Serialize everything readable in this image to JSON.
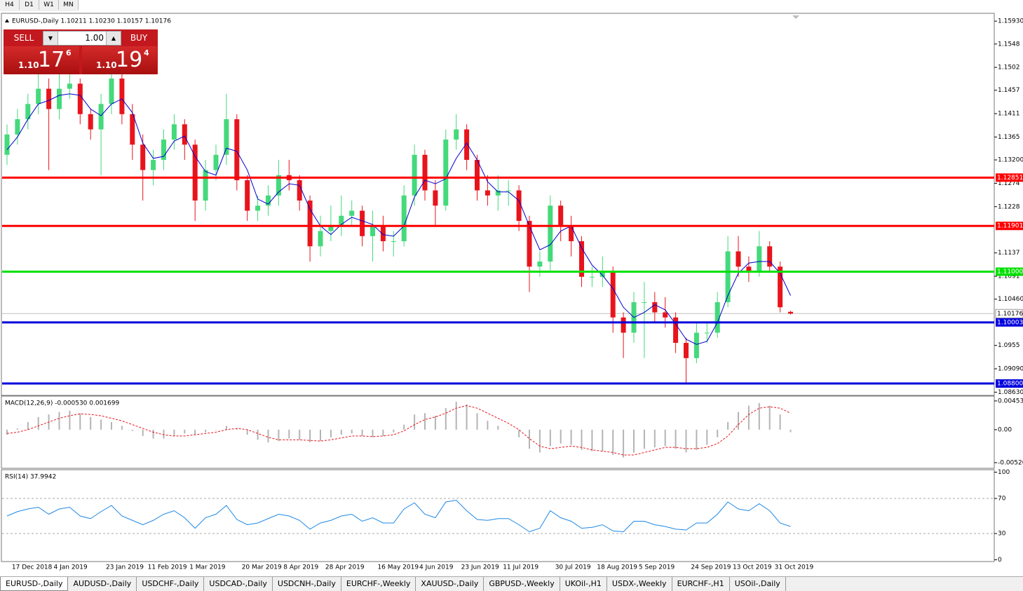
{
  "toolbar": {
    "timeframes": [
      "H4",
      "D1",
      "W1",
      "MN"
    ]
  },
  "trade_panel": {
    "sell": "SELL",
    "lot": "1.00",
    "buy": "BUY",
    "sell_big": "1.10",
    "sell_pips": "17",
    "sell_frac": "6",
    "buy_big": "1.10",
    "buy_pips": "19",
    "buy_frac": "4"
  },
  "chart_data": [
    {
      "type": "candlestick",
      "title": "EURUSD-,Daily  1.10211 1.10230 1.10157 1.10176",
      "categories": [
        null,
        "17 Dec 2018",
        null,
        null,
        null,
        "4 Jan 2019",
        null,
        null,
        null,
        null,
        "23 Jan 2019",
        null,
        null,
        null,
        "11 Feb 2019",
        null,
        null,
        null,
        "1 Mar 2019",
        null,
        null,
        null,
        null,
        "20 Mar 2019",
        null,
        null,
        null,
        "8 Apr 2019",
        null,
        null,
        null,
        "28 Apr 2019",
        null,
        null,
        null,
        null,
        "16 May 2019",
        null,
        null,
        null,
        "4 Jun 2019",
        null,
        null,
        null,
        "23 Jun 2019",
        null,
        null,
        null,
        "11 Jul 2019",
        null,
        null,
        null,
        null,
        "30 Jul 2019",
        null,
        null,
        null,
        "18 Aug 2019",
        null,
        null,
        null,
        "5 Sep 2019",
        null,
        null,
        null,
        null,
        "24 Sep 2019",
        null,
        null,
        null,
        "13 Oct 2019",
        null,
        null,
        null,
        "31 Oct 2019",
        null
      ],
      "open": [
        1.133,
        1.137,
        1.14,
        1.143,
        1.146,
        1.142,
        1.146,
        1.147,
        1.141,
        1.138,
        1.143,
        1.148,
        1.141,
        1.135,
        1.13,
        1.132,
        1.136,
        1.139,
        1.135,
        1.124,
        1.13,
        1.133,
        1.14,
        1.128,
        1.122,
        1.123,
        1.125,
        1.129,
        1.128,
        1.124,
        1.115,
        1.118,
        1.119,
        1.121,
        1.122,
        1.117,
        1.119,
        1.116,
        1.116,
        1.125,
        1.133,
        1.126,
        1.123,
        1.136,
        1.138,
        1.132,
        1.126,
        1.125,
        1.126,
        1.126,
        1.12,
        1.111,
        1.112,
        1.123,
        1.119,
        1.116,
        1.109,
        1.109,
        1.11,
        1.101,
        1.098,
        1.104,
        1.104,
        1.102,
        1.101,
        1.096,
        1.093,
        1.098,
        1.098,
        1.104,
        1.114,
        1.111,
        1.11,
        1.115,
        1.111,
        1.10211
      ],
      "high": [
        1.139,
        1.142,
        1.145,
        1.149,
        1.148,
        1.149,
        1.149,
        1.148,
        1.142,
        1.145,
        1.149,
        1.149,
        1.143,
        1.137,
        1.134,
        1.138,
        1.141,
        1.14,
        1.136,
        1.132,
        1.135,
        1.145,
        1.141,
        1.129,
        1.125,
        1.127,
        1.132,
        1.132,
        1.129,
        1.125,
        1.121,
        1.123,
        1.125,
        1.124,
        1.123,
        1.122,
        1.121,
        1.118,
        1.127,
        1.135,
        1.134,
        1.128,
        1.138,
        1.141,
        1.139,
        1.133,
        1.129,
        1.129,
        1.128,
        1.127,
        1.121,
        1.114,
        1.125,
        1.124,
        1.121,
        1.117,
        1.111,
        1.113,
        1.111,
        1.102,
        1.106,
        1.108,
        1.106,
        1.105,
        1.102,
        1.097,
        1.1,
        1.1,
        1.106,
        1.117,
        1.117,
        1.113,
        1.118,
        1.116,
        1.112,
        1.1023
      ],
      "low": [
        1.131,
        1.135,
        1.138,
        1.141,
        1.13,
        1.14,
        1.144,
        1.139,
        1.136,
        1.129,
        1.141,
        1.139,
        1.132,
        1.124,
        1.127,
        1.13,
        1.134,
        1.132,
        1.12,
        1.122,
        1.128,
        1.131,
        1.126,
        1.12,
        1.12,
        1.121,
        1.123,
        1.126,
        1.122,
        1.112,
        1.113,
        1.116,
        1.117,
        1.119,
        1.115,
        1.112,
        1.114,
        1.113,
        1.115,
        1.123,
        1.124,
        1.119,
        1.122,
        1.134,
        1.13,
        1.124,
        1.123,
        1.122,
        1.123,
        1.118,
        1.106,
        1.109,
        1.11,
        1.116,
        1.113,
        1.107,
        1.107,
        1.107,
        1.098,
        1.093,
        1.096,
        1.093,
        1.1,
        1.099,
        1.094,
        1.088,
        1.092,
        1.096,
        1.097,
        1.103,
        1.109,
        1.108,
        1.109,
        1.11,
        1.102,
        1.10157
      ],
      "close": [
        1.137,
        1.14,
        1.143,
        1.146,
        1.142,
        1.146,
        1.147,
        1.141,
        1.138,
        1.143,
        1.148,
        1.141,
        1.135,
        1.13,
        1.132,
        1.136,
        1.139,
        1.135,
        1.124,
        1.13,
        1.133,
        1.14,
        1.128,
        1.122,
        1.123,
        1.125,
        1.129,
        1.128,
        1.124,
        1.115,
        1.118,
        1.119,
        1.121,
        1.122,
        1.117,
        1.119,
        1.116,
        1.116,
        1.125,
        1.133,
        1.126,
        1.123,
        1.136,
        1.138,
        1.132,
        1.126,
        1.125,
        1.126,
        1.126,
        1.12,
        1.111,
        1.112,
        1.123,
        1.119,
        1.116,
        1.109,
        1.109,
        1.11,
        1.101,
        1.098,
        1.104,
        1.104,
        1.102,
        1.101,
        1.096,
        1.093,
        1.098,
        1.098,
        1.104,
        1.114,
        1.111,
        1.11,
        1.115,
        1.111,
        1.103,
        1.10176
      ],
      "up_color": "#44d97b",
      "down_color": "#e8141c",
      "moving_average": {
        "color": "#0000cc",
        "values": [
          1.134,
          1.1365,
          1.14,
          1.143,
          1.1437,
          1.1447,
          1.145,
          1.1447,
          1.142,
          1.1407,
          1.143,
          1.144,
          1.1413,
          1.1353,
          1.1323,
          1.1327,
          1.1357,
          1.1367,
          1.1327,
          1.1297,
          1.129,
          1.1343,
          1.1337,
          1.13,
          1.1243,
          1.1233,
          1.1257,
          1.1273,
          1.127,
          1.1223,
          1.119,
          1.1173,
          1.1193,
          1.1207,
          1.12,
          1.1193,
          1.1173,
          1.117,
          1.119,
          1.1247,
          1.128,
          1.1273,
          1.1283,
          1.1323,
          1.1353,
          1.132,
          1.1277,
          1.1257,
          1.1257,
          1.124,
          1.119,
          1.1143,
          1.1153,
          1.118,
          1.119,
          1.1147,
          1.1113,
          1.1093,
          1.1067,
          1.103,
          1.101,
          1.102,
          1.1035,
          1.1025,
          1.0997,
          1.0967,
          1.0957,
          1.0963,
          1.1,
          1.1053,
          1.1097,
          1.1117,
          1.112,
          1.112,
          1.1097,
          1.1053
        ]
      },
      "levels": [
        {
          "value": 1.12851,
          "color": "#ff0000"
        },
        {
          "value": 1.11901,
          "color": "#ff0000"
        },
        {
          "value": 1.11,
          "label": "1.11000",
          "color": "#00e000"
        },
        {
          "value": 1.10003,
          "color": "#0000dd"
        },
        {
          "value": 1.088,
          "label": "1.08800",
          "color": "#0000dd"
        }
      ],
      "current_price": 1.10176,
      "ylim": [
        1.0858,
        1.1607
      ],
      "yticks": [
        {
          "value": 1.1593,
          "label": "1.15930"
        },
        1.1548,
        1.1502,
        1.1457,
        1.1411,
        1.1365,
        {
          "value": 1.132,
          "label": "1.13200"
        },
        1.1274,
        1.1228,
        1.1137,
        1.1091,
        {
          "value": 1.1046,
          "label": "1.10460"
        },
        1.0955,
        {
          "value": 1.0909,
          "label": "1.09090"
        },
        {
          "value": 1.0863,
          "label": "1.08630"
        }
      ]
    },
    {
      "type": "macd",
      "title": "MACD(12,26,9) -0.000530 0.001699",
      "histogram": [
        -0.0008,
        0.0002,
        0.0012,
        0.002,
        0.0024,
        0.0028,
        0.003,
        0.0026,
        0.002,
        0.0016,
        0.0012,
        0.0006,
        -0.0002,
        -0.001,
        -0.0014,
        -0.0014,
        -0.001,
        -0.0006,
        -0.0008,
        -0.0004,
        0.0,
        0.0006,
        0.0002,
        -0.0008,
        -0.0016,
        -0.002,
        -0.0018,
        -0.0014,
        -0.0016,
        -0.002,
        -0.0018,
        -0.0012,
        -0.0008,
        -0.0006,
        -0.001,
        -0.0012,
        -0.001,
        -0.0004,
        0.0008,
        0.0024,
        0.0026,
        0.0022,
        0.0034,
        0.0044,
        0.004,
        0.0026,
        0.0014,
        0.0006,
        0.0,
        -0.0012,
        -0.003,
        -0.0036,
        -0.0026,
        -0.0022,
        -0.0024,
        -0.0032,
        -0.0034,
        -0.0034,
        -0.004,
        -0.0044,
        -0.0036,
        -0.003,
        -0.0028,
        -0.0026,
        -0.003,
        -0.0036,
        -0.0032,
        -0.0024,
        -0.0012,
        0.0012,
        0.0028,
        0.0038,
        0.0042,
        0.0038,
        0.0024,
        -0.0004
      ],
      "signal": [
        -0.0006,
        -0.0004,
        0.0,
        0.0006,
        0.0012,
        0.0018,
        0.0022,
        0.0025,
        0.0024,
        0.0022,
        0.0018,
        0.0014,
        0.0008,
        0.0002,
        -0.0004,
        -0.0008,
        -0.001,
        -0.001,
        -0.0008,
        -0.0006,
        -0.0004,
        0.0,
        0.0002,
        0.0,
        -0.0006,
        -0.0012,
        -0.0016,
        -0.0016,
        -0.0016,
        -0.0017,
        -0.0018,
        -0.0016,
        -0.0013,
        -0.001,
        -0.001,
        -0.0011,
        -0.001,
        -0.0008,
        -0.0002,
        0.0008,
        0.0016,
        0.002,
        0.0026,
        0.0034,
        0.0038,
        0.0034,
        0.0026,
        0.0018,
        0.001,
        0.0,
        -0.0014,
        -0.0026,
        -0.003,
        -0.0028,
        -0.0026,
        -0.0028,
        -0.0032,
        -0.0034,
        -0.0036,
        -0.004,
        -0.004,
        -0.0036,
        -0.0032,
        -0.0028,
        -0.0028,
        -0.003,
        -0.003,
        -0.0028,
        -0.0022,
        -0.001,
        0.0008,
        0.0024,
        0.0034,
        0.0036,
        0.0034,
        0.0026
      ],
      "histogram_color": "#b4b4b4",
      "signal_color": "#e8141c",
      "ylim": [
        -0.0061,
        0.0053
      ],
      "yticks": [
        0.004536,
        {
          "value": 0,
          "label": "0.00"
        },
        -0.005208
      ]
    },
    {
      "type": "rsi",
      "title": "RSI(14) 37.9942",
      "values": [
        50,
        55,
        58,
        60,
        52,
        58,
        60,
        50,
        47,
        55,
        62,
        50,
        45,
        40,
        45,
        52,
        56,
        48,
        36,
        48,
        52,
        62,
        46,
        40,
        42,
        47,
        52,
        50,
        45,
        35,
        42,
        45,
        50,
        52,
        44,
        48,
        42,
        42,
        58,
        65,
        52,
        48,
        66,
        68,
        56,
        46,
        45,
        47,
        47,
        40,
        32,
        36,
        56,
        48,
        44,
        36,
        37,
        40,
        33,
        32,
        44,
        44,
        40,
        38,
        35,
        34,
        42,
        42,
        52,
        66,
        58,
        56,
        64,
        56,
        42,
        38
      ],
      "color": "#1e88e5",
      "levels": [
        70,
        30
      ],
      "ylim": [
        -1.2,
        102.8
      ],
      "yticks": [
        100,
        70,
        30,
        0
      ]
    }
  ],
  "tabs": [
    "EURUSD-,Daily",
    "AUDUSD-,Daily",
    "USDCHF-,Daily",
    "USDCAD-,Daily",
    "USDCNH-,Daily",
    "EURCHF-,Weekly",
    "XAUUSD-,Daily",
    "GBPUSD-,Weekly",
    "UKOil-,H1",
    "USDX-,Weekly",
    "EURCHF-,H1",
    "USOil-,Daily"
  ]
}
